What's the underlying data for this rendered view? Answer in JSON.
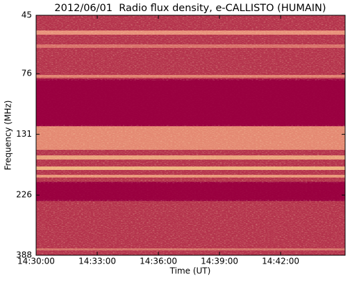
{
  "chart_data": {
    "type": "heatmap",
    "title": "2012/06/01  Radio flux density, e-CALLISTO (HUMAIN)",
    "x_label": "Time (UT)",
    "y_label": "Frequency (MHz)",
    "xlim": [
      "14:30:00",
      "14:45:10"
    ],
    "xticks": [
      "14:30:00",
      "14:33:00",
      "14:36:00",
      "14:39:00",
      "14:42:00"
    ],
    "ylim": [
      388,
      45
    ],
    "yticks": [
      45,
      76,
      131,
      226,
      388
    ],
    "yscale": "log"
  }
}
